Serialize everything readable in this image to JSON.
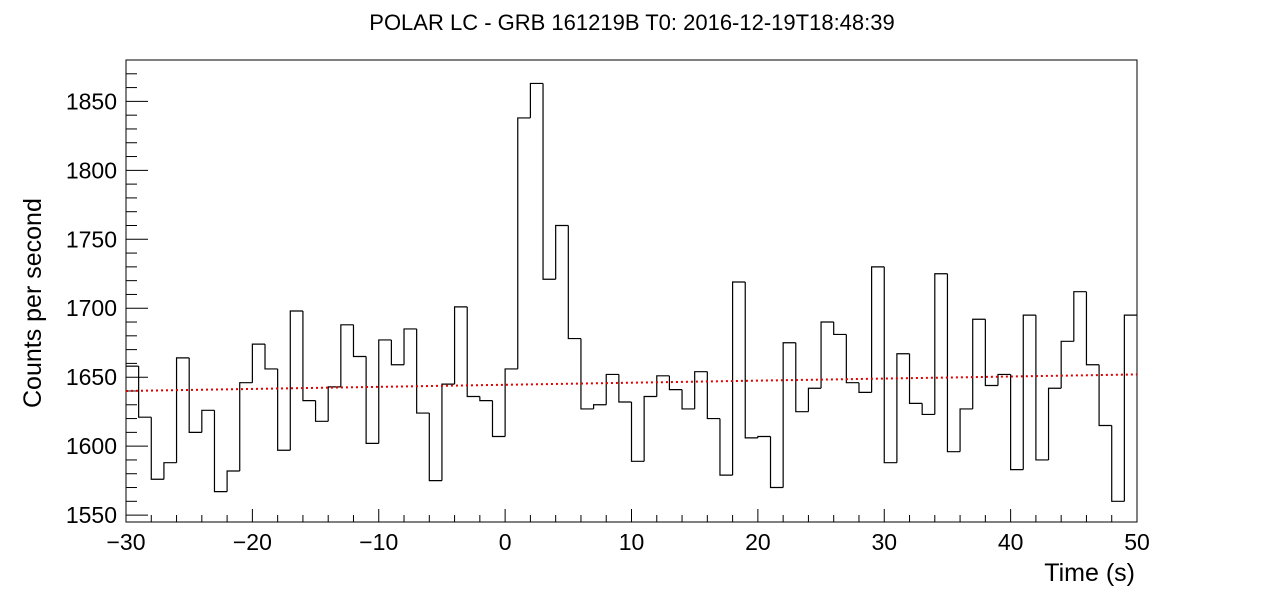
{
  "chart_data": {
    "type": "line",
    "title": "POLAR LC - GRB 161219B  T0: 2016-12-19T18:48:39",
    "xlabel": "Time (s)",
    "ylabel": "Counts per second",
    "xlim": [
      -30,
      50
    ],
    "ylim": [
      1545,
      1880
    ],
    "x_ticks": [
      -30,
      -20,
      -10,
      0,
      10,
      20,
      30,
      40,
      50
    ],
    "x_tick_labels": [
      "−30",
      "−20",
      "−10",
      "0",
      "10",
      "20",
      "30",
      "40",
      "50"
    ],
    "y_ticks": [
      1550,
      1600,
      1650,
      1700,
      1750,
      1800,
      1850
    ],
    "y_tick_labels": [
      "1550",
      "1600",
      "1650",
      "1700",
      "1750",
      "1800",
      "1850"
    ],
    "grid": false,
    "series": [
      {
        "style": "histogram-step",
        "color": "#000000",
        "bin_width": 1,
        "x_start": -30,
        "values": [
          1658,
          1621,
          1576,
          1588,
          1664,
          1610,
          1626,
          1567,
          1582,
          1646,
          1674,
          1656,
          1597,
          1698,
          1633,
          1618,
          1643,
          1688,
          1665,
          1602,
          1677,
          1659,
          1685,
          1624,
          1575,
          1645,
          1701,
          1636,
          1633,
          1607,
          1656,
          1838,
          1863,
          1721,
          1760,
          1678,
          1627,
          1630,
          1652,
          1632,
          1589,
          1636,
          1651,
          1641,
          1627,
          1654,
          1620,
          1579,
          1719,
          1606,
          1607,
          1570,
          1675,
          1625,
          1642,
          1690,
          1681,
          1646,
          1639,
          1730,
          1588,
          1667,
          1631,
          1623,
          1725,
          1596,
          1627,
          1692,
          1644,
          1652,
          1583,
          1695,
          1590,
          1642,
          1676,
          1712,
          1659,
          1615,
          1560,
          1695
        ]
      },
      {
        "style": "dotted-line",
        "color": "#e00000",
        "x": [
          -30,
          50
        ],
        "values": [
          1640,
          1652
        ]
      }
    ]
  }
}
